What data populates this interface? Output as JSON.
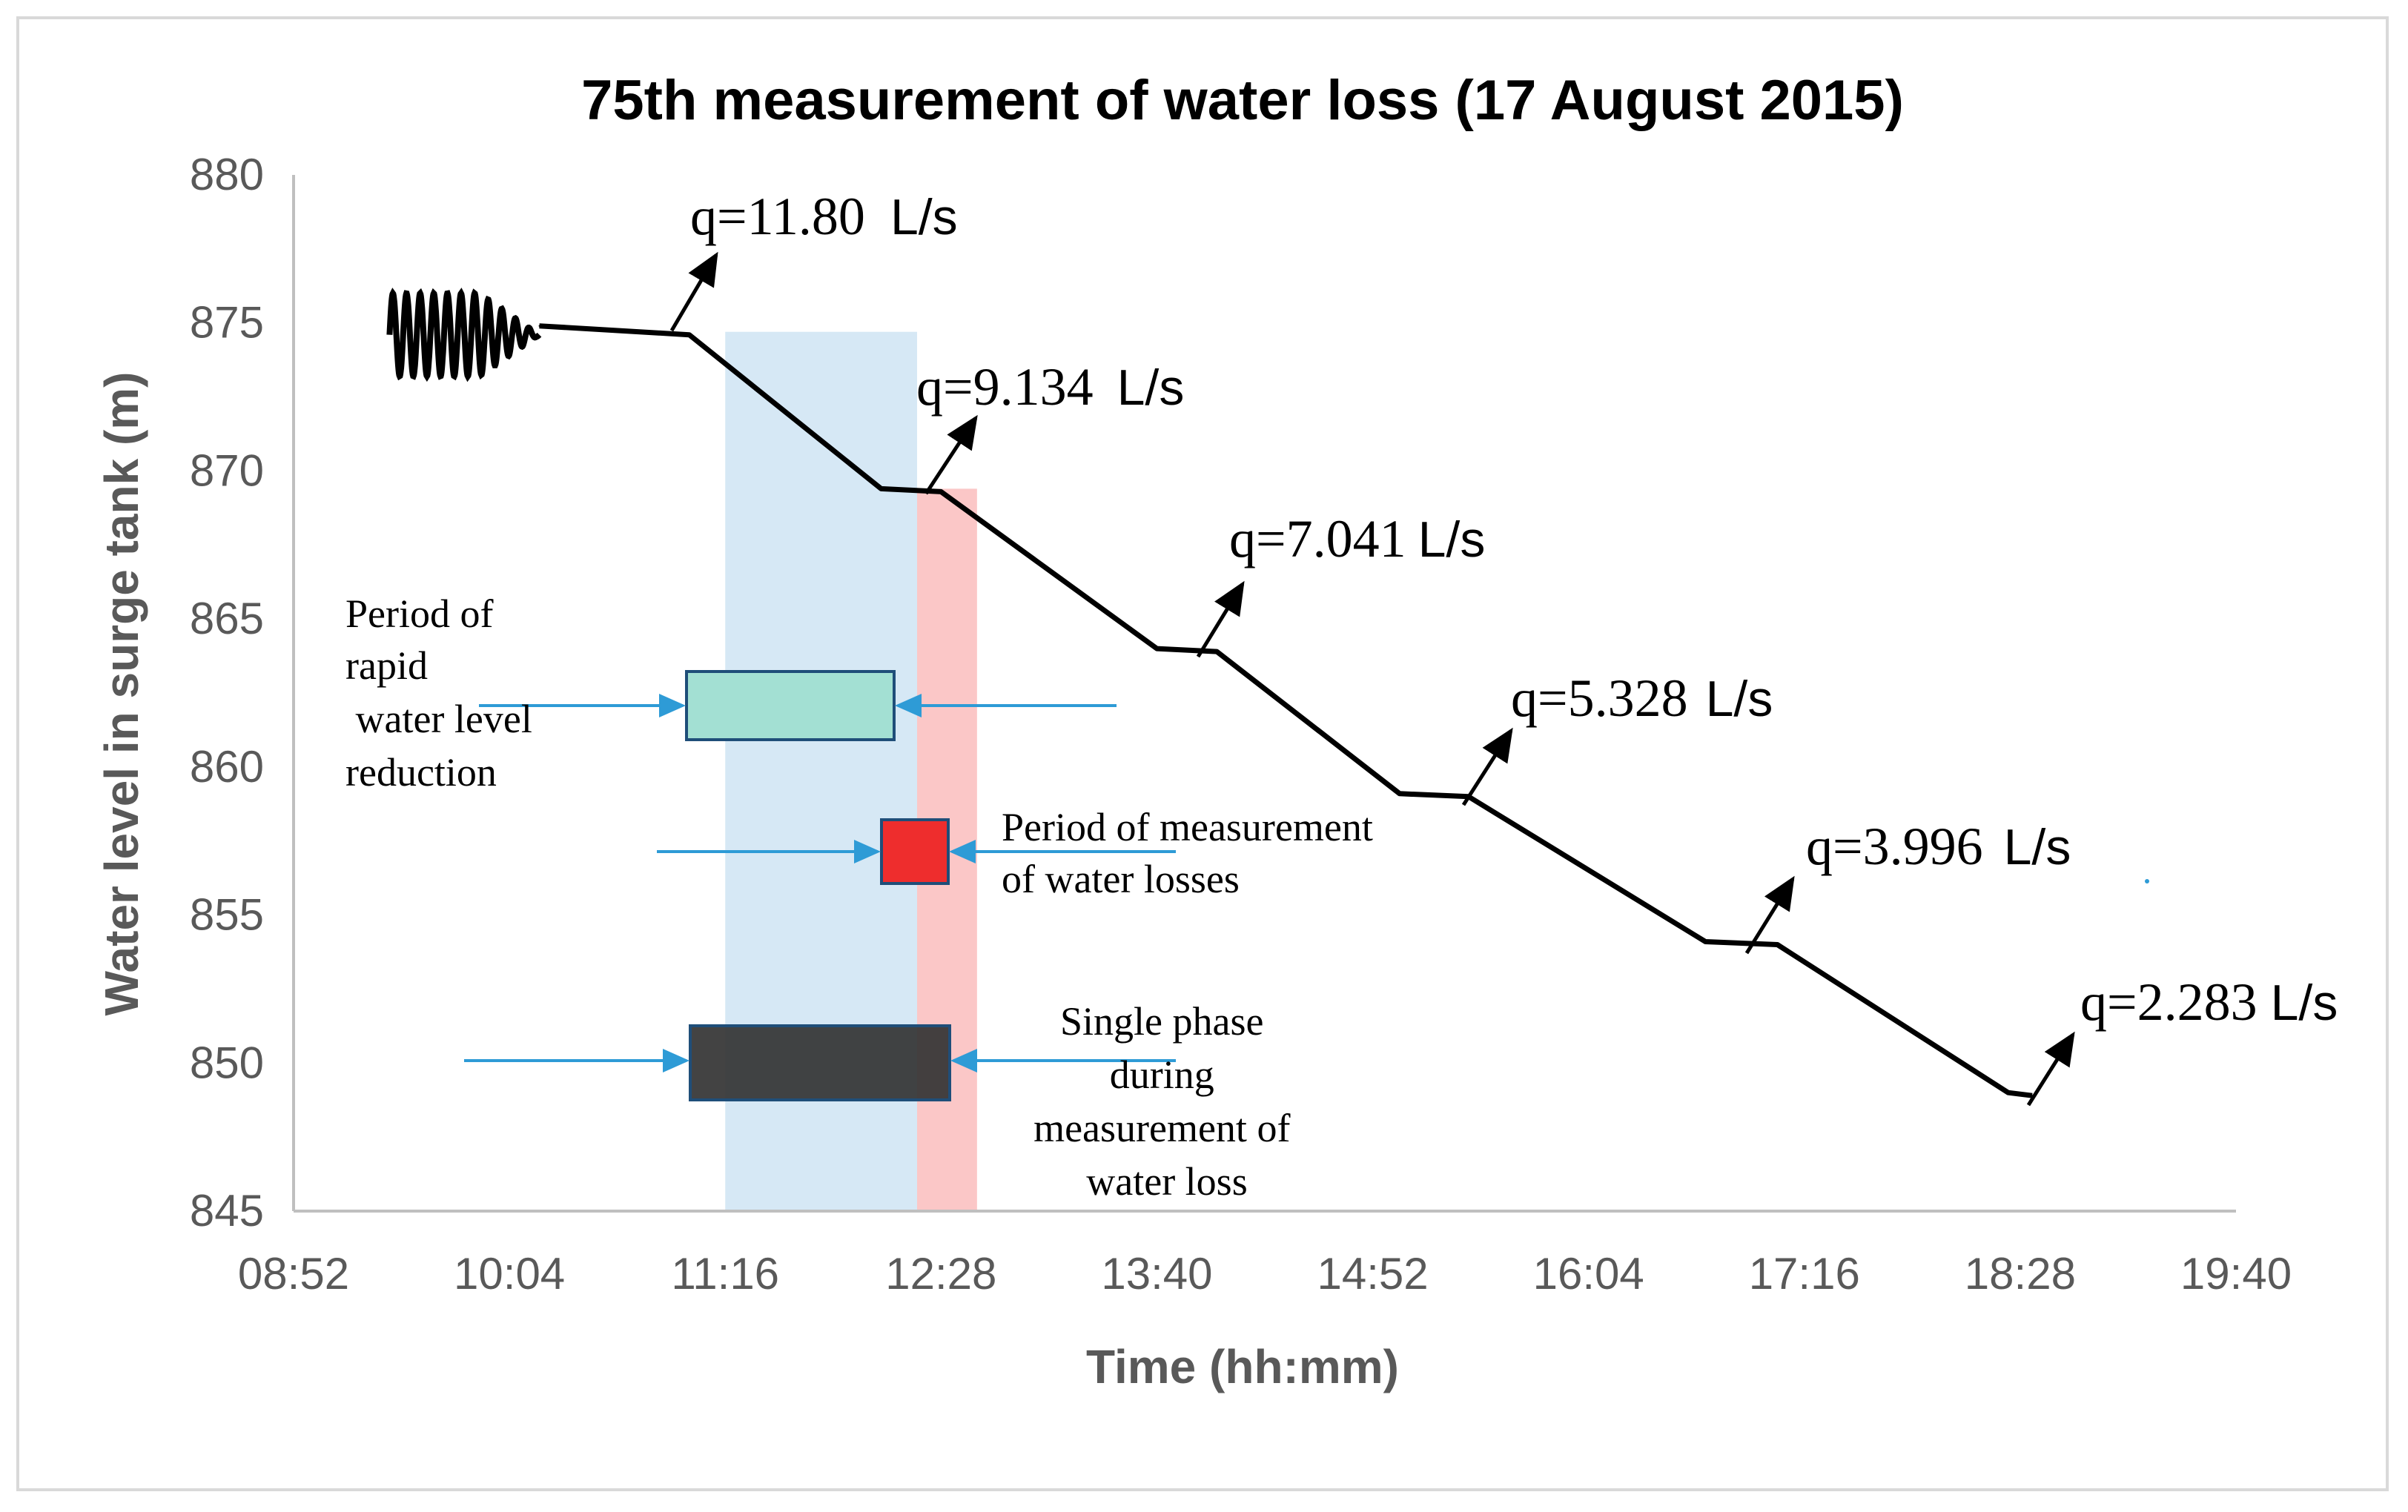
{
  "chart_data": {
    "type": "line",
    "title": "75th measurement of water loss (17 August 2015)",
    "xlabel": "Time (hh:mm)",
    "ylabel": "Water level in surge tank (m)",
    "x_ticks": [
      "08:52",
      "10:04",
      "11:16",
      "12:28",
      "13:40",
      "14:52",
      "16:04",
      "17:16",
      "18:28",
      "19:40"
    ],
    "y_ticks": [
      845,
      850,
      855,
      860,
      865,
      870,
      875,
      880
    ],
    "ylim": [
      845,
      880
    ],
    "xlim": [
      "08:52",
      "19:40"
    ],
    "grid": false,
    "series": [
      {
        "values": [
          {
            "x": "10:14",
            "y": 874.9
          },
          {
            "x": "11:04",
            "y": 874.6
          },
          {
            "x": "12:08",
            "y": 869.4
          },
          {
            "x": "12:28",
            "y": 869.3
          },
          {
            "x": "13:40",
            "y": 864.0
          },
          {
            "x": "14:00",
            "y": 863.9
          },
          {
            "x": "15:01",
            "y": 859.1
          },
          {
            "x": "15:24",
            "y": 859.0
          },
          {
            "x": "16:43",
            "y": 854.1
          },
          {
            "x": "17:07",
            "y": 854.0
          },
          {
            "x": "18:24",
            "y": 849.0
          },
          {
            "x": "18:32",
            "y": 848.9
          }
        ]
      }
    ],
    "oscillation": {
      "x_start": "09:24",
      "x_end": "10:14",
      "center": 874.6,
      "amplitude": 1.4
    },
    "shaded_regions": [
      {
        "x_start": "11:16",
        "x_end": "12:20",
        "color": "#d6e8f5"
      },
      {
        "x_start": "12:20",
        "x_end": "12:40",
        "color": "#fbc7c7"
      }
    ],
    "flow_labels": [
      {
        "text": "q=11.80",
        "unit": "L/s"
      },
      {
        "text": "q=9.134",
        "unit": "L/s"
      },
      {
        "text": "q=7.041",
        "unit": "L/s"
      },
      {
        "text": "q=5.328",
        "unit": "L/s"
      },
      {
        "text": "q=3.996",
        "unit": "L/s"
      },
      {
        "text": "q=2.283",
        "unit": "L/s"
      }
    ],
    "legend_boxes": [
      {
        "label_lines": [
          "Period of",
          "rapid",
          " water level",
          "reduction"
        ],
        "color": "#a3e0d3"
      },
      {
        "label_lines": [
          "Period of measurement",
          "of water losses"
        ],
        "color": "#ee2d2d"
      },
      {
        "label_lines": [
          "Single phase",
          "during",
          "measurement of",
          "water loss"
        ],
        "color": "#333333"
      }
    ],
    "colors": {
      "line": "#000000",
      "arrow_blue": "#2e9bd6",
      "axis": "#bfbfbf",
      "box_border": "#1f4e79"
    }
  }
}
